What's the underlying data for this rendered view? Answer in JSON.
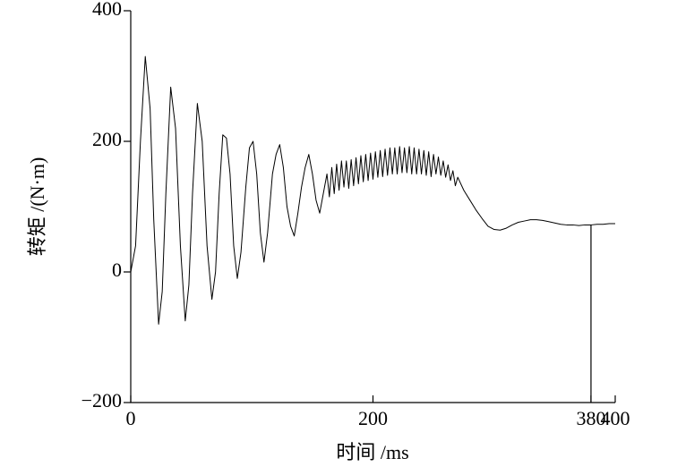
{
  "chart_data": {
    "type": "line",
    "x_label": "时间 /ms",
    "y_label": "转矩 /(N·m)",
    "xlim": [
      0,
      400
    ],
    "ylim": [
      -200,
      400
    ],
    "xticks": [
      0,
      200,
      380,
      400
    ],
    "yticks": [
      {
        "value": -200,
        "label": "−200"
      },
      0,
      200,
      400
    ],
    "vlines": [
      380
    ],
    "grid": false,
    "color": "#000000",
    "x": [
      0,
      4,
      8,
      12,
      16,
      19,
      23,
      26,
      29,
      33,
      37,
      41,
      45,
      48,
      51,
      55,
      59,
      63,
      67,
      70,
      73,
      76,
      79,
      82,
      85,
      88,
      91,
      95,
      98,
      101,
      104,
      107,
      110,
      113,
      117,
      120,
      123,
      126,
      129,
      132,
      135,
      138,
      141,
      144,
      147,
      150,
      153,
      156,
      159,
      162,
      164,
      166,
      168,
      170,
      172,
      174,
      176,
      178,
      180,
      182,
      184,
      186,
      188,
      190,
      192,
      194,
      196,
      198,
      200,
      202,
      204,
      206,
      208,
      210,
      212,
      214,
      216,
      218,
      220,
      222,
      224,
      226,
      228,
      230,
      232,
      234,
      236,
      238,
      240,
      242,
      244,
      246,
      248,
      250,
      252,
      254,
      256,
      258,
      260,
      262,
      264,
      266,
      268,
      270,
      275,
      280,
      285,
      290,
      295,
      300,
      305,
      310,
      315,
      320,
      325,
      330,
      335,
      340,
      345,
      350,
      355,
      360,
      365,
      370,
      375,
      380,
      385,
      390,
      395,
      400
    ],
    "values": [
      0,
      40,
      200,
      330,
      250,
      80,
      -80,
      -30,
      120,
      283,
      220,
      40,
      -75,
      -20,
      120,
      258,
      200,
      40,
      -42,
      0,
      120,
      210,
      205,
      150,
      40,
      -10,
      30,
      130,
      190,
      200,
      150,
      60,
      15,
      60,
      150,
      180,
      195,
      160,
      100,
      70,
      55,
      90,
      130,
      160,
      180,
      150,
      110,
      90,
      120,
      150,
      115,
      160,
      120,
      165,
      125,
      170,
      130,
      170,
      128,
      172,
      132,
      175,
      135,
      178,
      138,
      180,
      140,
      182,
      142,
      184,
      145,
      186,
      146,
      188,
      148,
      190,
      150,
      190,
      150,
      192,
      152,
      190,
      152,
      192,
      150,
      190,
      150,
      188,
      150,
      186,
      148,
      184,
      146,
      180,
      150,
      176,
      148,
      170,
      145,
      164,
      140,
      155,
      132,
      145,
      125,
      110,
      95,
      82,
      70,
      65,
      64,
      67,
      72,
      76,
      78,
      80,
      80,
      79,
      77,
      75,
      73,
      72,
      72,
      71,
      72,
      72,
      73,
      73,
      74,
      74
    ]
  }
}
